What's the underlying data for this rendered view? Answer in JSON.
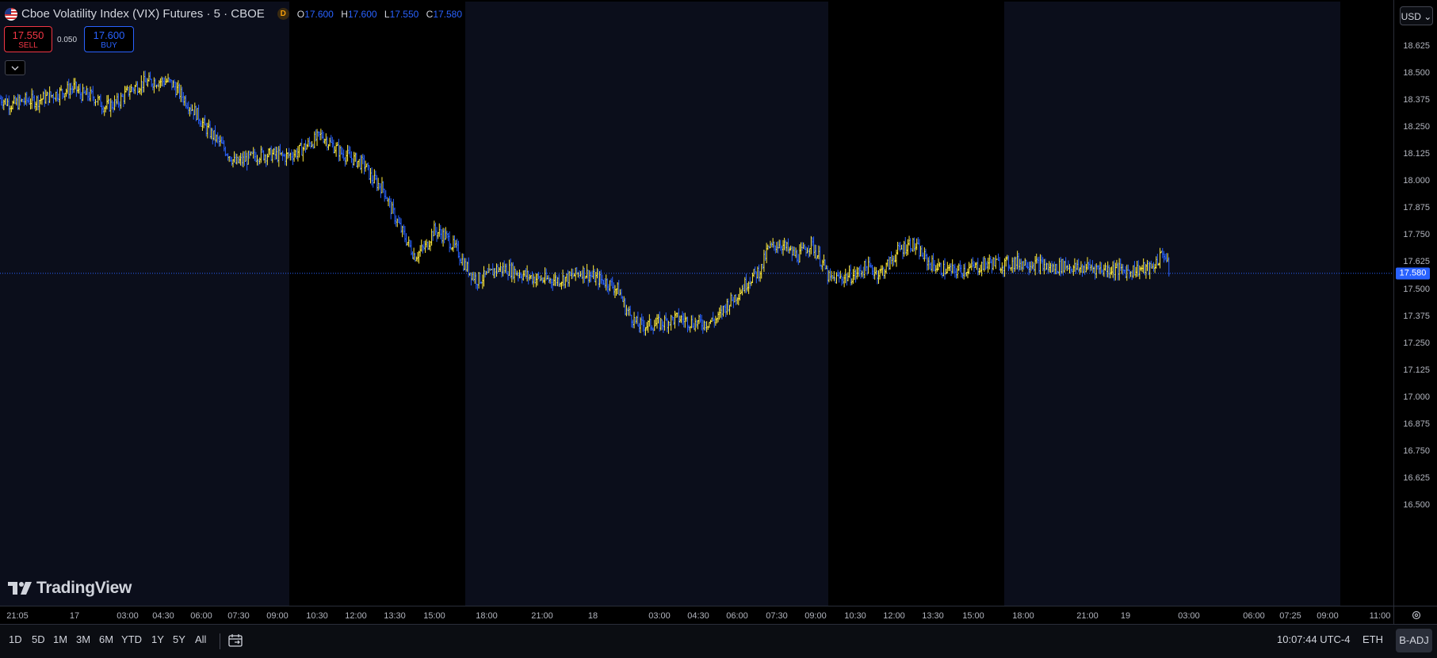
{
  "legend": {
    "symbol_title": "Cboe Volatility Index (VIX) Futures · 5 · CBOE",
    "delayed_badge": "D",
    "open_label": "O",
    "open": "17.600",
    "high_label": "H",
    "high": "17.600",
    "low_label": "L",
    "low": "17.550",
    "close_label": "C",
    "close": "17.580"
  },
  "trade": {
    "sell_price": "17.550",
    "sell_label": "SELL",
    "spread": "0.050",
    "buy_price": "17.600",
    "buy_label": "BUY"
  },
  "currency": "USD",
  "watermark": "TradingView",
  "price_axis": {
    "ticks": [
      "18.625",
      "18.500",
      "18.375",
      "18.250",
      "18.125",
      "18.000",
      "17.875",
      "17.750",
      "17.625",
      "17.500",
      "17.375",
      "17.250",
      "17.125",
      "17.000",
      "16.875",
      "16.750",
      "16.625",
      "16.500"
    ],
    "last_price": "17.580"
  },
  "time_axis": {
    "ticks": [
      "21:05",
      "17",
      "03:00",
      "04:30",
      "06:00",
      "07:30",
      "09:00",
      "10:30",
      "12:00",
      "13:30",
      "15:00",
      "18:00",
      "21:00",
      "18",
      "03:00",
      "04:30",
      "06:00",
      "07:30",
      "09:00",
      "10:30",
      "12:00",
      "13:30",
      "15:00",
      "18:00",
      "21:00",
      "19",
      "03:00",
      "06:00",
      "07:25",
      "09:00",
      "11:00"
    ]
  },
  "bottom_bar": {
    "ranges": [
      "1D",
      "5D",
      "1M",
      "3M",
      "6M",
      "YTD",
      "1Y",
      "5Y",
      "All"
    ],
    "clock": "10:07:44 UTC-4",
    "session": "ETH",
    "adjustment": "B-ADJ"
  },
  "colors": {
    "up": "#ffeb3b",
    "down": "#2962ff",
    "regular_session_bg": "#0b0e1b",
    "extended_session_bg": "#000000",
    "last_price_line": "#2962ff"
  },
  "chart_data": {
    "type": "line",
    "title": "Cboe Volatility Index (VIX) Futures · 5 · CBOE",
    "xlabel": "",
    "ylabel": "",
    "ylim": [
      16.45,
      18.7
    ],
    "last_price": 17.58,
    "series": [
      {
        "values": [
          [
            0,
            18.39
          ],
          [
            2,
            18.36
          ],
          [
            4,
            18.38
          ],
          [
            6,
            18.38
          ],
          [
            8,
            18.4
          ],
          [
            10,
            18.42
          ],
          [
            12,
            18.44
          ],
          [
            13,
            18.41
          ],
          [
            15,
            18.4
          ],
          [
            17,
            18.35
          ],
          [
            19,
            18.37
          ],
          [
            21,
            18.43
          ],
          [
            23,
            18.46
          ],
          [
            25,
            18.47
          ],
          [
            27,
            18.47
          ],
          [
            28,
            18.45
          ],
          [
            30,
            18.38
          ],
          [
            32,
            18.31
          ],
          [
            33,
            18.26
          ],
          [
            35,
            18.2
          ],
          [
            37,
            18.13
          ],
          [
            38,
            18.09
          ],
          [
            40,
            18.11
          ],
          [
            42,
            18.13
          ],
          [
            44,
            18.13
          ],
          [
            46,
            18.12
          ],
          [
            48,
            18.14
          ],
          [
            50,
            18.18
          ],
          [
            52,
            18.22
          ],
          [
            53,
            18.19
          ],
          [
            55,
            18.14
          ],
          [
            57,
            18.11
          ],
          [
            59,
            18.08
          ],
          [
            60,
            18.02
          ],
          [
            62,
            17.97
          ],
          [
            63,
            17.89
          ],
          [
            65,
            17.77
          ],
          [
            67,
            17.66
          ],
          [
            69,
            17.71
          ],
          [
            70,
            17.78
          ],
          [
            72,
            17.75
          ],
          [
            74,
            17.68
          ],
          [
            75,
            17.62
          ],
          [
            77,
            17.55
          ],
          [
            79,
            17.57
          ],
          [
            80,
            17.6
          ],
          [
            82,
            17.6
          ],
          [
            84,
            17.58
          ],
          [
            86,
            17.56
          ],
          [
            88,
            17.55
          ],
          [
            90,
            17.55
          ],
          [
            92,
            17.56
          ],
          [
            94,
            17.59
          ],
          [
            96,
            17.56
          ],
          [
            98,
            17.54
          ],
          [
            100,
            17.5
          ],
          [
            101,
            17.42
          ],
          [
            103,
            17.34
          ],
          [
            105,
            17.34
          ],
          [
            107,
            17.35
          ],
          [
            109,
            17.37
          ],
          [
            110,
            17.37
          ],
          [
            112,
            17.35
          ],
          [
            114,
            17.35
          ],
          [
            116,
            17.37
          ],
          [
            117,
            17.42
          ],
          [
            119,
            17.48
          ],
          [
            121,
            17.55
          ],
          [
            123,
            17.6
          ],
          [
            124,
            17.69
          ],
          [
            126,
            17.72
          ],
          [
            128,
            17.67
          ],
          [
            129,
            17.66
          ],
          [
            131,
            17.72
          ],
          [
            133,
            17.62
          ],
          [
            134,
            17.55
          ],
          [
            136,
            17.56
          ],
          [
            138,
            17.57
          ],
          [
            140,
            17.61
          ],
          [
            142,
            17.58
          ],
          [
            143,
            17.6
          ],
          [
            145,
            17.68
          ],
          [
            147,
            17.72
          ],
          [
            148,
            17.7
          ],
          [
            150,
            17.63
          ],
          [
            152,
            17.6
          ],
          [
            154,
            17.59
          ],
          [
            156,
            17.6
          ],
          [
            158,
            17.61
          ],
          [
            160,
            17.63
          ],
          [
            162,
            17.62
          ],
          [
            164,
            17.63
          ],
          [
            166,
            17.63
          ],
          [
            168,
            17.62
          ],
          [
            170,
            17.6
          ],
          [
            172,
            17.62
          ],
          [
            174,
            17.6
          ],
          [
            176,
            17.61
          ],
          [
            178,
            17.6
          ],
          [
            180,
            17.6
          ],
          [
            182,
            17.59
          ],
          [
            184,
            17.6
          ],
          [
            186,
            17.6
          ],
          [
            188,
            17.68
          ],
          [
            189,
            17.58
          ]
        ]
      }
    ]
  }
}
